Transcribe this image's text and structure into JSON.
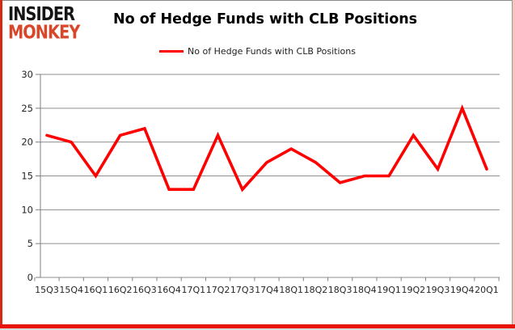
{
  "logo": {
    "line1": "INSIDER",
    "line2": "MONKEY",
    "color_line1": "#141414",
    "color_line2": "#d9472b"
  },
  "header": {
    "title": "No of Hedge Funds with CLB Positions"
  },
  "legend": {
    "label": "No of Hedge Funds with CLB Positions",
    "line_color": "#ff0000"
  },
  "colors": {
    "series_line": "#ff0000",
    "gridline": "#8f8f8f",
    "axis_line": "#7f7f7f",
    "axis_text": "#262626",
    "border_red": "#d42a12"
  },
  "chart_data": {
    "type": "line",
    "title": "No of Hedge Funds with CLB Positions",
    "categories": [
      "15Q3",
      "15Q4",
      "16Q1",
      "16Q2",
      "16Q3",
      "16Q4",
      "17Q1",
      "17Q2",
      "17Q3",
      "17Q4",
      "18Q1",
      "18Q2",
      "18Q3",
      "18Q4",
      "19Q1",
      "19Q2",
      "19Q3",
      "19Q4",
      "20Q1"
    ],
    "series": [
      {
        "name": "No of Hedge Funds with CLB Positions",
        "color": "#ff0000",
        "values": [
          21,
          20,
          15,
          21,
          22,
          13,
          13,
          21,
          13,
          17,
          19,
          17,
          14,
          15,
          15,
          21,
          16,
          25,
          16
        ]
      }
    ],
    "xlabel": "",
    "ylabel": "",
    "ylim": [
      0,
      30
    ],
    "yticks": [
      0,
      5,
      10,
      15,
      20,
      25,
      30
    ],
    "grid": true,
    "legend_position": "top-center"
  }
}
